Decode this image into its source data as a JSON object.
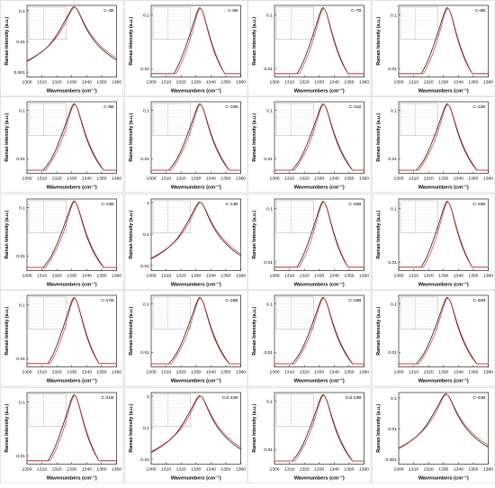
{
  "chart_data": [
    {
      "type": "line",
      "title": "C-4B",
      "xlabel": "Wavenumbers (cm⁻¹)",
      "ylabel": "Raman Intensity (a.u.)",
      "xlim": [
        1300,
        1360
      ],
      "x_ticks": [
        "1300",
        "1310",
        "1320",
        "1330",
        "1340",
        "1350",
        "1360"
      ],
      "y_scale": "log",
      "y_ticks": [
        "0.001",
        "0.01",
        "0.1"
      ],
      "ylim": [
        0.0007,
        0.15
      ],
      "series": [
        {
          "peak_x": 1332,
          "peak_y": 0.13
        }
      ],
      "fit_table": true
    },
    {
      "type": "line",
      "title": "C-5B",
      "xlabel": "Wavenumbers (cm⁻¹)",
      "ylabel": "Raman Intensity (a.u.)",
      "xlim": [
        1300,
        1360
      ],
      "x_ticks": [
        "1300",
        "1310",
        "1320",
        "1330",
        "1340",
        "1350",
        "1360"
      ],
      "y_scale": "log",
      "y_ticks": [
        "0.01",
        "0.1"
      ],
      "ylim": [
        0.007,
        0.15
      ],
      "series": [
        {
          "peak_x": 1333,
          "peak_y": 0.13
        }
      ],
      "fit_table": true
    },
    {
      "type": "line",
      "title": "C-7B",
      "xlabel": "Wavenumbers (cm⁻¹)",
      "ylabel": "Raman Intensity (a.u.)",
      "xlim": [
        1300,
        1360
      ],
      "x_ticks": [
        "1300",
        "1310",
        "1320",
        "1330",
        "1340",
        "1350",
        "1360"
      ],
      "y_scale": "log",
      "y_ticks": [
        "0.01",
        "0.1"
      ],
      "ylim": [
        0.007,
        0.15
      ],
      "series": [
        {
          "peak_x": 1333,
          "peak_y": 0.13
        }
      ],
      "fit_table": true
    },
    {
      "type": "line",
      "title": "C-6B",
      "xlabel": "Wavenumbers (cm⁻¹)",
      "ylabel": "Raman Intensity (a.u.)",
      "xlim": [
        1300,
        1360
      ],
      "x_ticks": [
        "1300",
        "1310",
        "1320",
        "1330",
        "1340",
        "1350",
        "1360"
      ],
      "y_scale": "log",
      "y_ticks": [
        "0.01",
        "0.1"
      ],
      "ylim": [
        0.007,
        0.15
      ],
      "series": [
        {
          "peak_x": 1333,
          "peak_y": 0.13
        }
      ],
      "fit_table": true
    },
    {
      "type": "line",
      "title": "C-9B",
      "xlabel": "Wavenumbers (cm⁻¹)",
      "ylabel": "Raman Intensity (a.u.)",
      "xlim": [
        1300,
        1360
      ],
      "x_ticks": [
        "1300",
        "1310",
        "1320",
        "1330",
        "1340",
        "1350",
        "1360"
      ],
      "y_scale": "log",
      "y_ticks": [
        "0.01",
        "0.1"
      ],
      "ylim": [
        0.005,
        0.15
      ],
      "series": [
        {
          "peak_x": 1332,
          "peak_y": 0.13
        }
      ],
      "fit_table": true
    },
    {
      "type": "line",
      "title": "C-10B",
      "xlabel": "Wavenumbers (cm⁻¹)",
      "ylabel": "Raman Intensity (a.u.)",
      "xlim": [
        1300,
        1360
      ],
      "x_ticks": [
        "1300",
        "1310",
        "1320",
        "1330",
        "1340",
        "1350",
        "1360"
      ],
      "y_scale": "log",
      "y_ticks": [
        "0.01",
        "0.1"
      ],
      "ylim": [
        0.005,
        0.15
      ],
      "series": [
        {
          "peak_x": 1333,
          "peak_y": 0.13
        }
      ],
      "fit_table": true
    },
    {
      "type": "line",
      "title": "C-11B",
      "xlabel": "Wavenumbers (cm⁻¹)",
      "ylabel": "Raman Intensity (a.u.)",
      "xlim": [
        1300,
        1360
      ],
      "x_ticks": [
        "1300",
        "1310",
        "1320",
        "1330",
        "1340",
        "1350",
        "1360"
      ],
      "y_scale": "log",
      "y_ticks": [
        "0.01",
        "0.1"
      ],
      "ylim": [
        0.005,
        0.15
      ],
      "series": [
        {
          "peak_x": 1333,
          "peak_y": 0.13
        }
      ],
      "fit_table": true
    },
    {
      "type": "line",
      "title": "C-12B",
      "xlabel": "Wavenumbers (cm⁻¹)",
      "ylabel": "Raman Intensity (a.u.)",
      "xlim": [
        1300,
        1360
      ],
      "x_ticks": [
        "1300",
        "1310",
        "1320",
        "1330",
        "1340",
        "1350",
        "1360"
      ],
      "y_scale": "log",
      "y_ticks": [
        "0.01",
        "0.1"
      ],
      "ylim": [
        0.005,
        0.15
      ],
      "series": [
        {
          "peak_x": 1333,
          "peak_y": 0.13
        }
      ],
      "fit_table": true
    },
    {
      "type": "line",
      "title": "C-13B",
      "xlabel": "Wavenumbers (cm⁻¹)",
      "ylabel": "Raman Intensity (a.u.)",
      "xlim": [
        1300,
        1360
      ],
      "x_ticks": [
        "1300",
        "1310",
        "1320",
        "1330",
        "1340",
        "1350",
        "1360"
      ],
      "y_scale": "log",
      "y_ticks": [
        "0.01",
        "0.1"
      ],
      "ylim": [
        0.005,
        0.15
      ],
      "series": [
        {
          "peak_x": 1332,
          "peak_y": 0.13
        }
      ],
      "fit_table": true
    },
    {
      "type": "line",
      "title": "C-14B",
      "xlabel": "Wavenumbers (cm⁻¹)",
      "ylabel": "Raman Intensity (a.u.)",
      "xlim": [
        1300,
        1360
      ],
      "x_ticks": [
        "1300",
        "1310",
        "1320",
        "1330",
        "1340",
        "1350",
        "1360"
      ],
      "y_scale": "log",
      "y_ticks": [
        "0.01",
        "0.1",
        "1"
      ],
      "ylim": [
        0.007,
        1.3
      ],
      "series": [
        {
          "peak_x": 1333,
          "peak_y": 1.0
        }
      ],
      "fit_table": true
    },
    {
      "type": "line",
      "title": "C-15B",
      "xlabel": "Wavenumbers (cm⁻¹)",
      "ylabel": "Raman Intensity (a.u.)",
      "xlim": [
        1300,
        1360
      ],
      "x_ticks": [
        "1300",
        "1310",
        "1320",
        "1330",
        "1340",
        "1350",
        "1360"
      ],
      "y_scale": "log",
      "y_ticks": [
        "0.01",
        "0.1"
      ],
      "ylim": [
        0.007,
        0.15
      ],
      "series": [
        {
          "peak_x": 1333,
          "peak_y": 0.13
        }
      ],
      "fit_table": true
    },
    {
      "type": "line",
      "title": "C-16B",
      "xlabel": "Wavenumbers (cm⁻¹)",
      "ylabel": "Raman Intensity (a.u.)",
      "xlim": [
        1300,
        1360
      ],
      "x_ticks": [
        "1300",
        "1310",
        "1320",
        "1330",
        "1340",
        "1350",
        "1360"
      ],
      "y_scale": "log",
      "y_ticks": [
        "0.01",
        "0.1"
      ],
      "ylim": [
        0.007,
        0.15
      ],
      "series": [
        {
          "peak_x": 1333,
          "peak_y": 0.13
        }
      ],
      "fit_table": true
    },
    {
      "type": "line",
      "title": "C-17B",
      "xlabel": "Wavenumbers (cm⁻¹)",
      "ylabel": "Raman Intensity (a.u.)",
      "xlim": [
        1300,
        1360
      ],
      "x_ticks": [
        "1300",
        "1310",
        "1320",
        "1330",
        "1340",
        "1350",
        "1360"
      ],
      "y_scale": "log",
      "y_ticks": [
        "0.01",
        "0.1"
      ],
      "ylim": [
        0.007,
        0.15
      ],
      "series": [
        {
          "peak_x": 1332,
          "peak_y": 0.13
        }
      ],
      "fit_table": true
    },
    {
      "type": "line",
      "title": "C-18B",
      "xlabel": "Wavenumbers (cm⁻¹)",
      "ylabel": "Raman Intensity (a.u.)",
      "xlim": [
        1300,
        1360
      ],
      "x_ticks": [
        "1300",
        "1310",
        "1320",
        "1330",
        "1340",
        "1350",
        "1360"
      ],
      "y_scale": "log",
      "y_ticks": [
        "0.01",
        "0.1"
      ],
      "ylim": [
        0.005,
        0.15
      ],
      "series": [
        {
          "peak_x": 1333,
          "peak_y": 0.13
        }
      ],
      "fit_table": true
    },
    {
      "type": "line",
      "title": "C-19B",
      "xlabel": "Wavenumbers (cm⁻¹)",
      "ylabel": "Raman Intensity (a.u.)",
      "xlim": [
        1300,
        1360
      ],
      "x_ticks": [
        "1300",
        "1310",
        "1320",
        "1330",
        "1340",
        "1350",
        "1360"
      ],
      "y_scale": "log",
      "y_ticks": [
        "0.01",
        "0.1"
      ],
      "ylim": [
        0.005,
        0.15
      ],
      "series": [
        {
          "peak_x": 1333,
          "peak_y": 0.13
        }
      ],
      "fit_table": true
    },
    {
      "type": "line",
      "title": "C-20B",
      "xlabel": "Wavenumbers (cm⁻¹)",
      "ylabel": "Raman Intensity (a.u.)",
      "xlim": [
        1300,
        1360
      ],
      "x_ticks": [
        "1300",
        "1310",
        "1320",
        "1330",
        "1340",
        "1350",
        "1360"
      ],
      "y_scale": "log",
      "y_ticks": [
        "0.01",
        "0.1"
      ],
      "ylim": [
        0.005,
        0.15
      ],
      "series": [
        {
          "peak_x": 1333,
          "peak_y": 0.13
        }
      ],
      "fit_table": true
    },
    {
      "type": "line",
      "title": "C-21B",
      "xlabel": "Wavenumbers (cm⁻¹)",
      "ylabel": "Raman Intensity (a.u.)",
      "xlim": [
        1300,
        1360
      ],
      "x_ticks": [
        "1300",
        "1310",
        "1320",
        "1330",
        "1340",
        "1350",
        "1360"
      ],
      "y_scale": "log",
      "y_ticks": [
        "0.01",
        "0.1"
      ],
      "ylim": [
        0.007,
        0.15
      ],
      "series": [
        {
          "peak_x": 1332,
          "peak_y": 0.13
        }
      ],
      "fit_table": true
    },
    {
      "type": "line",
      "title": "Cul 22B",
      "xlabel": "Wavenumbers (cm⁻¹)",
      "ylabel": "Raman Intensity (a.u.)",
      "xlim": [
        1300,
        1360
      ],
      "x_ticks": [
        "1300",
        "1310",
        "1320",
        "1330",
        "1340",
        "1350",
        "1360"
      ],
      "y_scale": "log",
      "y_ticks": [
        "0.01",
        "0.1",
        "1"
      ],
      "ylim": [
        0.007,
        1.3
      ],
      "series": [
        {
          "peak_x": 1333,
          "peak_y": 1.0
        }
      ],
      "fit_table": true
    },
    {
      "type": "line",
      "title": "Cul 23B",
      "xlabel": "Wavenumbers (cm⁻¹)",
      "ylabel": "Raman Intensity (a.u.)",
      "xlim": [
        1300,
        1360
      ],
      "x_ticks": [
        "1300",
        "1310",
        "1320",
        "1330",
        "1340",
        "1350",
        "1360"
      ],
      "y_scale": "log",
      "y_ticks": [
        "0.01",
        "0.1"
      ],
      "ylim": [
        0.005,
        0.15
      ],
      "series": [
        {
          "peak_x": 1333,
          "peak_y": 0.13
        }
      ],
      "fit_table": true
    },
    {
      "type": "line",
      "title": "C-24B",
      "xlabel": "Wavenumbers (cm⁻¹)",
      "ylabel": "Raman Intensity (a.u.)",
      "xlim": [
        1300,
        1360
      ],
      "x_ticks": [
        "1300",
        "1310",
        "1320",
        "1330",
        "1340",
        "1350",
        "1360"
      ],
      "y_scale": "log",
      "y_ticks": [
        "0.001",
        "0.01",
        "0.1"
      ],
      "ylim": [
        0.0007,
        0.15
      ],
      "series": [
        {
          "peak_x": 1332,
          "peak_y": 0.13
        }
      ],
      "fit_table": false
    }
  ],
  "colors": {
    "measured": "#000000",
    "fit": "#e8322b",
    "axis": "#000000",
    "table": "#9a9a9a",
    "frame": "#cfcfcf"
  }
}
